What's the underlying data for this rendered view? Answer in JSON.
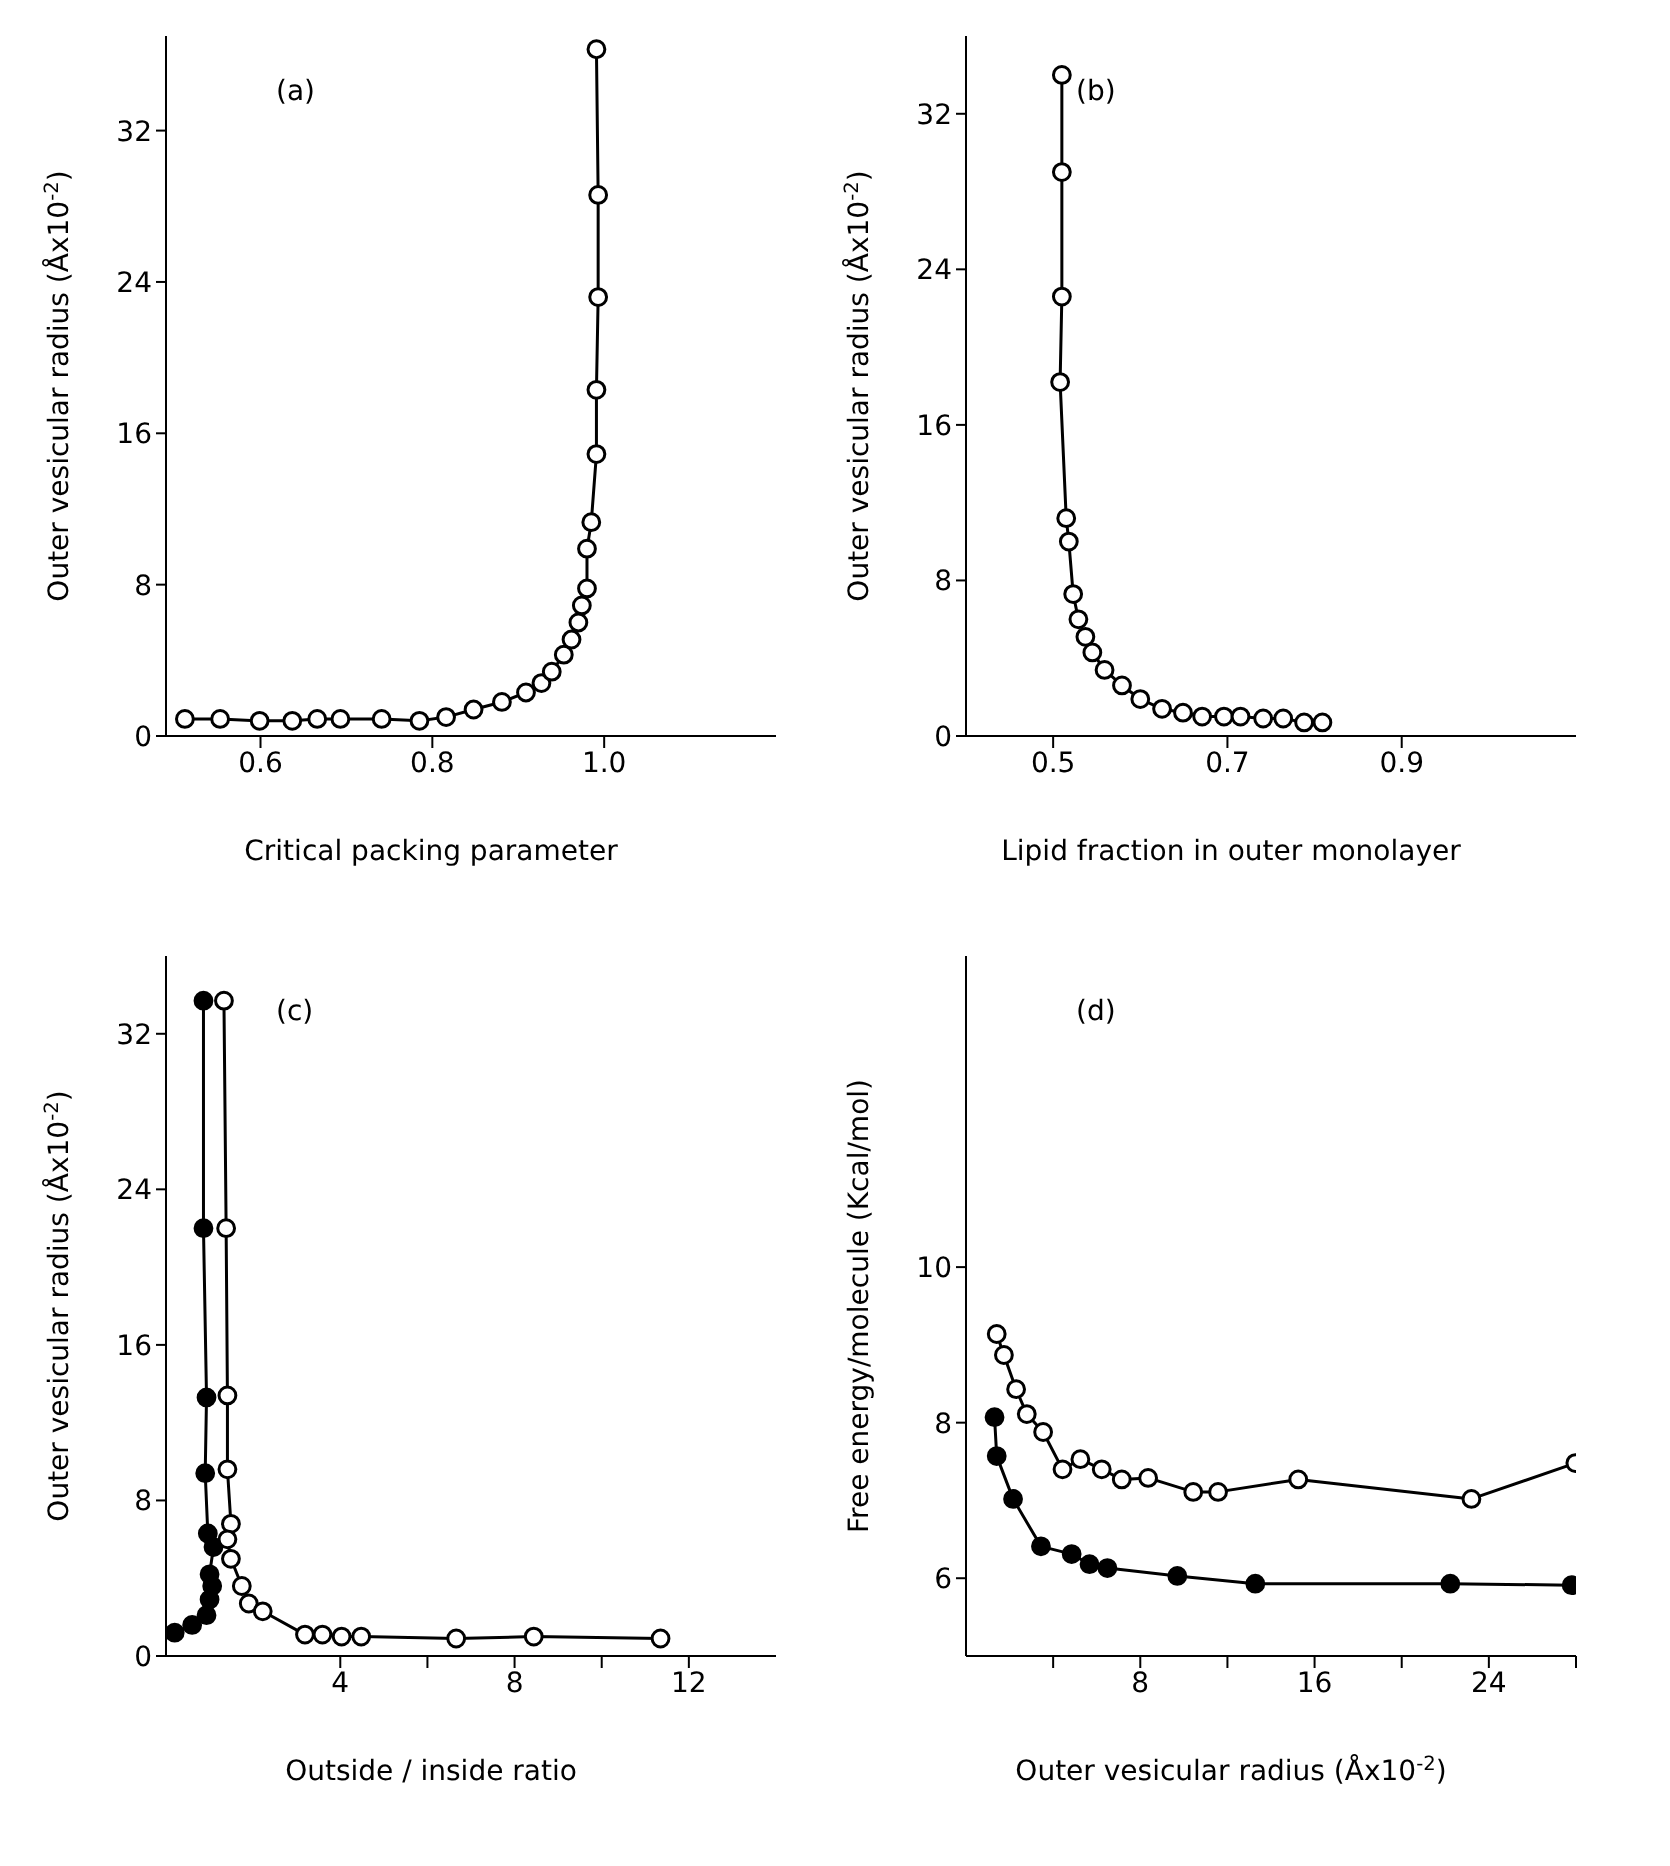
{
  "chart_data": [
    {
      "type": "line",
      "annotations": [
        "(a)"
      ],
      "xlabel": "Critical packing parameter",
      "ylabel": "Outer vesicular radius (Åx10$^{-2}$)",
      "xlim": [
        0.49,
        1.2
      ],
      "ylim": [
        0,
        37
      ],
      "xticks": [
        0.6,
        0.8,
        {
          "value": 1,
          "label": "1.0"
        }
      ],
      "yticks": [
        0,
        8,
        16,
        24,
        32
      ],
      "marker": "circle",
      "line_style": "solid",
      "grid": false,
      "series": [
        {
          "color": "#ffffff",
          "x": [
            0.512,
            0.553,
            0.599,
            0.637,
            0.666,
            0.693,
            0.741,
            0.785,
            0.816,
            0.848,
            0.881,
            0.909,
            0.927,
            0.939,
            0.953,
            0.962,
            0.97,
            0.974,
            0.98,
            0.98,
            0.985,
            0.991,
            0.991,
            0.993,
            0.993,
            0.991
          ],
          "values": [
            0.9,
            0.9,
            0.8,
            0.8,
            0.9,
            0.9,
            0.9,
            0.8,
            1.0,
            1.4,
            1.8,
            2.3,
            2.8,
            3.4,
            4.3,
            5.1,
            6.0,
            6.9,
            7.8,
            9.9,
            11.3,
            14.9,
            18.3,
            23.2,
            28.6,
            36.3
          ]
        }
      ]
    },
    {
      "type": "line",
      "annotations": [
        "(b)"
      ],
      "xlabel": "Lipid fraction in outer monolayer",
      "ylabel": "Outer vesicular radius (Åx10$^{-2}$)",
      "xlim": [
        0.4,
        1.1
      ],
      "ylim": [
        0,
        36
      ],
      "xticks": [
        0.5,
        0.7,
        0.9
      ],
      "yticks": [
        0,
        8,
        16,
        24,
        32
      ],
      "marker": "circle",
      "line_style": "solid",
      "grid": false,
      "series": [
        {
          "color": "#ffffff",
          "x": [
            0.51,
            0.51,
            0.51,
            0.508,
            0.515,
            0.518,
            0.523,
            0.529,
            0.537,
            0.545,
            0.559,
            0.579,
            0.6,
            0.625,
            0.649,
            0.671,
            0.696,
            0.715,
            0.741,
            0.764,
            0.788,
            0.809
          ],
          "values": [
            34.0,
            29.0,
            22.6,
            18.2,
            11.2,
            10.0,
            7.3,
            6.0,
            5.1,
            4.3,
            3.4,
            2.6,
            1.9,
            1.4,
            1.2,
            1.0,
            1.0,
            1.0,
            0.9,
            0.9,
            0.7,
            0.7
          ]
        }
      ]
    },
    {
      "type": "line",
      "annotations": [
        "(c)"
      ],
      "xlabel": "Outside / inside ratio",
      "ylabel": "Outer vesicular radius (Åx10$^{-2}$)",
      "xlim": [
        0,
        14
      ],
      "ylim": [
        0,
        36
      ],
      "xticks": [
        4,
        {
          "value": 6,
          "label": null
        },
        8,
        {
          "value": 10,
          "label": null
        },
        12
      ],
      "yticks": [
        0,
        8,
        16,
        24,
        32
      ],
      "marker": "circle",
      "line_style": "solid",
      "grid": false,
      "series": [
        {
          "color": "#000000",
          "x": [
            0.2,
            0.6,
            0.93,
            1.0,
            1.06,
            1.0,
            1.09,
            0.96,
            0.9,
            0.93,
            0.86,
            0.86
          ],
          "values": [
            1.2,
            1.6,
            2.1,
            2.9,
            3.6,
            4.2,
            5.6,
            6.3,
            9.4,
            13.3,
            22.0,
            33.7
          ]
        },
        {
          "color": "#ffffff",
          "x": [
            1.33,
            1.38,
            1.41,
            1.41,
            1.49,
            1.41,
            1.49,
            1.74,
            1.9,
            2.22,
            3.19,
            3.59,
            4.03,
            4.48,
            6.66,
            8.44,
            11.35
          ],
          "values": [
            33.7,
            22.0,
            13.4,
            9.6,
            6.8,
            6.0,
            5.0,
            3.6,
            2.7,
            2.3,
            1.1,
            1.1,
            1.0,
            1.0,
            0.9,
            1.0,
            0.9
          ]
        }
      ]
    },
    {
      "type": "line",
      "annotations": [
        "(d)"
      ],
      "xlabel": "Outer vesicular radius (Åx10$^{-2}$)",
      "ylabel": "Free energy/molecule (Kcal/mol)",
      "xlim": [
        0,
        28
      ],
      "ylim": [
        5,
        14
      ],
      "xticks": [
        {
          "value": 4,
          "label": null
        },
        8,
        {
          "value": 12,
          "label": null
        },
        16,
        {
          "value": 20,
          "label": null
        },
        24,
        {
          "value": 28,
          "label": null
        }
      ],
      "yticks": [
        6,
        8,
        10
      ],
      "marker": "circle",
      "line_style": "solid",
      "grid": false,
      "series": [
        {
          "color": "#ffffff",
          "x": [
            1.41,
            1.74,
            2.3,
            2.79,
            3.54,
            4.43,
            5.25,
            6.23,
            7.15,
            8.36,
            10.43,
            11.57,
            15.25,
            23.2,
            27.97
          ],
          "values": [
            9.14,
            8.87,
            8.43,
            8.11,
            7.88,
            7.4,
            7.53,
            7.4,
            7.27,
            7.29,
            7.11,
            7.11,
            7.27,
            7.02,
            7.48
          ]
        },
        {
          "color": "#000000",
          "x": [
            1.31,
            1.41,
            2.16,
            3.44,
            4.85,
            5.67,
            6.49,
            9.7,
            13.28,
            22.23,
            27.8
          ],
          "values": [
            8.07,
            7.57,
            7.02,
            6.41,
            6.31,
            6.18,
            6.13,
            6.03,
            5.93,
            5.93,
            5.91
          ]
        }
      ]
    }
  ]
}
